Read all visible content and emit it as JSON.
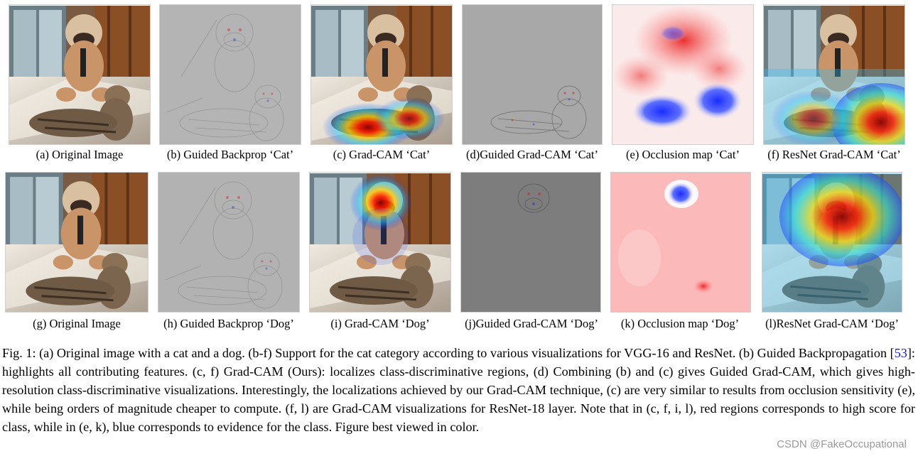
{
  "panels": {
    "a": {
      "caption": "(a) Original Image"
    },
    "b": {
      "caption": "(b) Guided Backprop ‘Cat’"
    },
    "c": {
      "caption": "(c) Grad-CAM ‘Cat’"
    },
    "d": {
      "caption": "(d)Guided Grad-CAM ‘Cat’"
    },
    "e": {
      "caption": "(e) Occlusion map ‘Cat’"
    },
    "f": {
      "caption": "(f) ResNet Grad-CAM ‘Cat’"
    },
    "g": {
      "caption": "(g) Original Image"
    },
    "h": {
      "caption": "(h) Guided Backprop ‘Dog’"
    },
    "i": {
      "caption": "(i) Grad-CAM ‘Dog’"
    },
    "j": {
      "caption": "(j)Guided Grad-CAM ‘Dog’"
    },
    "k": {
      "caption": "(k) Occlusion map ‘Dog’"
    },
    "l": {
      "caption": "(l)ResNet Grad-CAM ‘Dog’"
    }
  },
  "figure_caption": {
    "part1": "Fig. 1: (a) Original image with a cat and a dog. (b-f) Support for the cat category according to various visualizations for VGG-16 and ResNet. (b) Guided Backpropagation [",
    "ref": "53",
    "part2": "]: highlights all contributing features. (c, f) Grad-CAM (Ours): localizes class-discriminative regions, (d) Combining (b) and (c) gives Guided Grad-CAM, which gives high-resolution class-discriminative visualizations. Interestingly, the localizations achieved by our Grad-CAM technique, (c) are very similar to results from occlusion sensitivity (e), while being orders of magnitude cheaper to compute. (f, l) are Grad-CAM visualizations for ResNet-18 layer. Note that in (c, f, i, l), red regions corresponds to high score for class, while in (e, k), blue corresponds to evidence for the class. Figure best viewed in color."
  },
  "watermark": "CSDN @FakeOccupational"
}
